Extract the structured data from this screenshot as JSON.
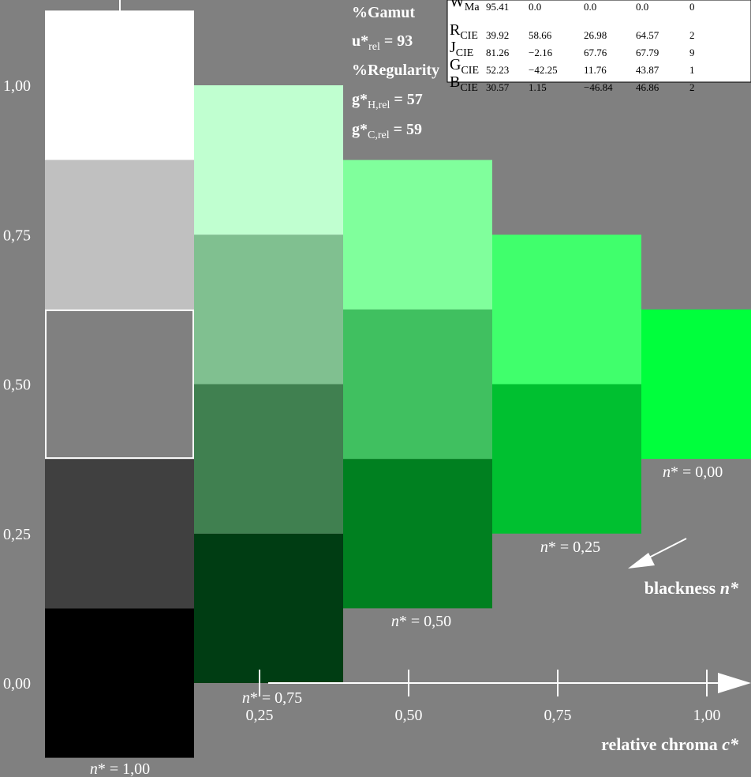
{
  "chart_data": {
    "type": "heatmap",
    "description_axes": {
      "x_label": "relative chroma c*",
      "y_ticks": [
        "0,00",
        "0,25",
        "0,50",
        "0,75",
        "1,00"
      ],
      "x_ticks": [
        "0,25",
        "0,50",
        "0,75",
        "1,00"
      ]
    },
    "series": [
      {
        "name": "n* = 1,00",
        "chroma": 0.0,
        "colors": [
          "#000000",
          "#404040",
          "#808080",
          "#c0c0c0",
          "#ffffff"
        ],
        "y_bottom": -0.125,
        "highlight_index": 2
      },
      {
        "name": "n* = 0,75",
        "chroma": 0.25,
        "colors": [
          "#003d13",
          "#408050",
          "#80c090",
          "#c0ffd0"
        ],
        "y_bottom": 0.0
      },
      {
        "name": "n* = 0,50",
        "chroma": 0.5,
        "colors": [
          "#008020",
          "#40c060",
          "#80ff9c"
        ],
        "y_bottom": 0.125
      },
      {
        "name": "n* = 0,25",
        "chroma": 0.75,
        "colors": [
          "#00c030",
          "#40ff6c"
        ],
        "y_bottom": 0.25
      },
      {
        "name": "n* = 0,00",
        "chroma": 1.0,
        "colors": [
          "#00ff3c"
        ],
        "y_bottom": 0.375
      }
    ]
  },
  "labels": {
    "n100": "n* = 1,00",
    "n075": "n* = 0,75",
    "n050": "n* = 0,50",
    "n025": "n* = 0,25",
    "n000": "n* = 0,00",
    "blackness": "blackness n*",
    "chroma": "relative chroma c*",
    "gamut": "%Gamut",
    "urel": "u*rel = 93",
    "regularity": "%Regularity",
    "ghrel": "g*H,rel = 57",
    "gcrel": "g*C,rel = 59"
  },
  "table": {
    "rows": [
      {
        "name": "W",
        "sub": "Ma",
        "c1": "95.41",
        "c2": "0.0",
        "c3": "0.0",
        "c4": "0.0",
        "c5": "0"
      },
      {
        "name": "R",
        "sub": "CIE",
        "c1": "39.92",
        "c2": "58.66",
        "c3": "26.98",
        "c4": "64.57",
        "c5": "2"
      },
      {
        "name": "J",
        "sub": "CIE",
        "c1": "81.26",
        "c2": "−2.16",
        "c3": "67.76",
        "c4": "67.79",
        "c5": "9"
      },
      {
        "name": "G",
        "sub": "CIE",
        "c1": "52.23",
        "c2": "−42.25",
        "c3": "11.76",
        "c4": "43.87",
        "c5": "1"
      },
      {
        "name": "B",
        "sub": "CIE",
        "c1": "30.57",
        "c2": "1.15",
        "c3": "−46.84",
        "c4": "46.86",
        "c5": "2"
      }
    ]
  }
}
